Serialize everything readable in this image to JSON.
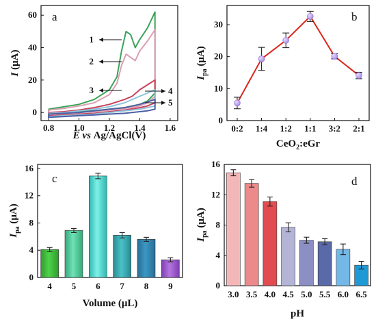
{
  "chart_data": [
    {
      "panel": "a",
      "type": "line",
      "xlabel_parts": [
        "E",
        " vs ",
        "Ag/AgCl(V)"
      ],
      "ylabel_parts": [
        "I",
        " (μA)"
      ],
      "xlim": [
        0.75,
        1.65
      ],
      "ylim": [
        -5,
        66
      ],
      "xticks": [
        "0.8",
        "1.0",
        "1.2",
        "1.4",
        "1.6"
      ],
      "yticks": [
        "0",
        "20",
        "40",
        "60"
      ],
      "curve_labels": [
        "1",
        "2",
        "3",
        "4",
        "5"
      ],
      "series": [
        {
          "label": "1",
          "color": "#3aa35a",
          "upper": [
            [
              0.8,
              2
            ],
            [
              0.9,
              3.5
            ],
            [
              1.0,
              5
            ],
            [
              1.1,
              8
            ],
            [
              1.2,
              14
            ],
            [
              1.25,
              22
            ],
            [
              1.28,
              38
            ],
            [
              1.31,
              50
            ],
            [
              1.34,
              48
            ],
            [
              1.37,
              40
            ],
            [
              1.4,
              45
            ],
            [
              1.45,
              52
            ],
            [
              1.5,
              62
            ]
          ],
          "lower": [
            [
              1.5,
              12
            ],
            [
              1.45,
              7
            ],
            [
              1.4,
              5
            ],
            [
              1.3,
              3
            ],
            [
              1.2,
              2
            ],
            [
              1.1,
              1
            ],
            [
              1.0,
              0.5
            ],
            [
              0.9,
              0
            ],
            [
              0.8,
              0
            ]
          ]
        },
        {
          "label": "2",
          "color": "#dc9fb1",
          "upper": [
            [
              0.8,
              1.5
            ],
            [
              0.9,
              2.5
            ],
            [
              1.0,
              4
            ],
            [
              1.1,
              6
            ],
            [
              1.2,
              11
            ],
            [
              1.25,
              18
            ],
            [
              1.28,
              29
            ],
            [
              1.31,
              36
            ],
            [
              1.34,
              34
            ],
            [
              1.37,
              32
            ],
            [
              1.4,
              38
            ],
            [
              1.45,
              44
            ],
            [
              1.5,
              51
            ]
          ],
          "lower": [
            [
              1.5,
              10
            ],
            [
              1.45,
              6
            ],
            [
              1.4,
              4
            ],
            [
              1.3,
              2.5
            ],
            [
              1.2,
              1.5
            ],
            [
              1.1,
              0.5
            ],
            [
              1.0,
              0
            ],
            [
              0.9,
              -0.5
            ],
            [
              0.8,
              -1
            ]
          ]
        },
        {
          "label": "3",
          "color": "#c9415c",
          "upper": [
            [
              0.8,
              0
            ],
            [
              0.9,
              0.5
            ],
            [
              1.0,
              1.5
            ],
            [
              1.1,
              3
            ],
            [
              1.2,
              5
            ],
            [
              1.3,
              8
            ],
            [
              1.35,
              10
            ],
            [
              1.4,
              14
            ],
            [
              1.45,
              17
            ],
            [
              1.5,
              20
            ]
          ],
          "lower": [
            [
              1.5,
              6
            ],
            [
              1.45,
              4
            ],
            [
              1.4,
              3
            ],
            [
              1.3,
              1.5
            ],
            [
              1.2,
              0.5
            ],
            [
              1.1,
              -0.5
            ],
            [
              1.0,
              -1
            ],
            [
              0.9,
              -1.5
            ],
            [
              0.8,
              -2
            ]
          ]
        },
        {
          "label": "4",
          "color": "#8fc3d9",
          "upper": [
            [
              0.8,
              -0.5
            ],
            [
              0.9,
              0
            ],
            [
              1.0,
              1
            ],
            [
              1.1,
              2
            ],
            [
              1.2,
              3.5
            ],
            [
              1.3,
              6
            ],
            [
              1.4,
              10
            ],
            [
              1.45,
              12
            ],
            [
              1.5,
              14
            ]
          ],
          "lower": [
            [
              1.5,
              4
            ],
            [
              1.45,
              3
            ],
            [
              1.4,
              2
            ],
            [
              1.3,
              1
            ],
            [
              1.2,
              0
            ],
            [
              1.1,
              -1
            ],
            [
              1.0,
              -1.5
            ],
            [
              0.9,
              -2
            ],
            [
              0.8,
              -2.5
            ]
          ]
        },
        {
          "label": "5",
          "color": "#4b5fa4",
          "upper": [
            [
              0.8,
              -1
            ],
            [
              0.9,
              -0.5
            ],
            [
              1.0,
              0
            ],
            [
              1.1,
              1
            ],
            [
              1.2,
              2
            ],
            [
              1.3,
              3
            ],
            [
              1.4,
              5
            ],
            [
              1.45,
              6.5
            ],
            [
              1.5,
              8
            ]
          ],
          "lower": [
            [
              1.5,
              2
            ],
            [
              1.45,
              1
            ],
            [
              1.4,
              0.5
            ],
            [
              1.3,
              -0.5
            ],
            [
              1.2,
              -1
            ],
            [
              1.1,
              -1.5
            ],
            [
              1.0,
              -2
            ],
            [
              0.9,
              -2.5
            ],
            [
              0.8,
              -3
            ]
          ]
        }
      ]
    },
    {
      "panel": "b",
      "type": "line",
      "xlabel_parts": [
        "CeO",
        "2",
        ":eGr"
      ],
      "ylabel_parts": [
        "I",
        "pa",
        " (μA)"
      ],
      "ylim": [
        0,
        36
      ],
      "yticks": [
        "0",
        "10",
        "20",
        "30"
      ],
      "categories": [
        "0:2",
        "1:4",
        "1:2",
        "1:1",
        "3:2",
        "2:1"
      ],
      "values": [
        5.5,
        19.3,
        25.1,
        32.6,
        20.1,
        14.1
      ],
      "errors": [
        1.8,
        3.6,
        2.3,
        1.6,
        0.8,
        1.0
      ],
      "line_color": "#d9261c",
      "marker_color": "#a688e0"
    },
    {
      "panel": "c",
      "type": "bar",
      "xlabel_parts": [
        "Volume (μL)"
      ],
      "ylabel_parts": [
        "I",
        "pa",
        " (μA)"
      ],
      "ylim": [
        0,
        16.6
      ],
      "yticks": [
        "0",
        "4",
        "8",
        "12",
        "16"
      ],
      "categories": [
        "4",
        "5",
        "6",
        "7",
        "8",
        "9"
      ],
      "values": [
        4.1,
        6.9,
        14.9,
        6.2,
        5.6,
        2.6
      ],
      "errors": [
        0.3,
        0.3,
        0.4,
        0.4,
        0.3,
        0.3
      ],
      "colors": [
        [
          "#4fd24a",
          "#2f9b2c"
        ],
        [
          "#6fe3b5",
          "#35a77c"
        ],
        [
          "#7ff0e8",
          "#2fb7b0"
        ],
        [
          "#49c2c8",
          "#2a8a92"
        ],
        [
          "#3a98c4",
          "#2a6c95"
        ],
        [
          "#b676e0",
          "#7c3fb0"
        ]
      ]
    },
    {
      "panel": "d",
      "type": "bar",
      "xlabel_parts": [
        "pH"
      ],
      "ylabel_parts": [
        "I",
        "pa",
        " (μA)"
      ],
      "ylim": [
        0,
        16
      ],
      "yticks": [
        "0",
        "4",
        "8",
        "12",
        "16"
      ],
      "categories": [
        "3.0",
        "3.5",
        "4.0",
        "4.5",
        "5.0",
        "5.5",
        "6.0",
        "6.5"
      ],
      "values": [
        14.9,
        13.5,
        11.1,
        7.7,
        6.0,
        5.8,
        4.8,
        2.7
      ],
      "errors": [
        0.4,
        0.5,
        0.6,
        0.6,
        0.4,
        0.4,
        0.7,
        0.5
      ],
      "colors": [
        "#f4b7b8",
        "#ec8a8b",
        "#e24b4f",
        "#b4b5d6",
        "#8c8fc3",
        "#5a6aa8",
        "#73b8e6",
        "#1f98d6"
      ]
    }
  ]
}
